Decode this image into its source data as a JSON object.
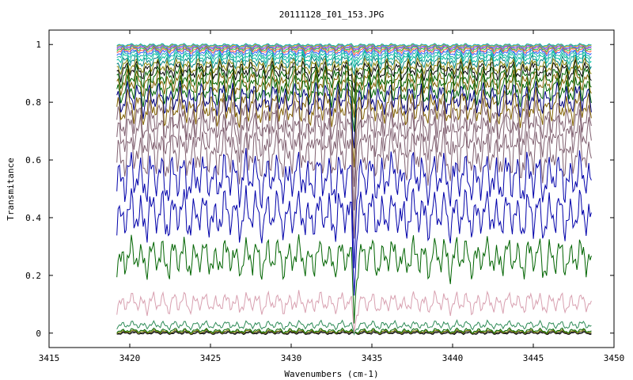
{
  "chart_data": {
    "type": "line",
    "title": "20111128_I01_153.JPG",
    "xlabel": "Wavenumbers (cm-1)",
    "ylabel": "Transmitance",
    "xlim": [
      3415,
      3450
    ],
    "ylim": [
      -0.05,
      1.05
    ],
    "x_range": [
      3419.2,
      3448.6
    ],
    "x_ticks": [
      3415,
      3420,
      3425,
      3430,
      3435,
      3440,
      3445,
      3450
    ],
    "x_tick_labels": [
      "3415",
      "3420",
      "3425",
      "3430",
      "3435",
      "3440",
      "3445",
      "3450"
    ],
    "y_ticks": [
      0,
      0.2,
      0.4,
      0.6,
      0.8,
      1
    ],
    "y_tick_labels": [
      "0",
      "0.2",
      "0.4",
      "0.6",
      "0.8",
      "1"
    ],
    "grid": false,
    "absorption_line_x": 3433.9,
    "series": [
      {
        "baseline": 0.0,
        "color": "#000000"
      },
      {
        "baseline": 0.003,
        "color": "#333333"
      },
      {
        "baseline": 0.006,
        "color": "#808000"
      },
      {
        "baseline": 0.01,
        "color": "#006400"
      },
      {
        "baseline": 0.03,
        "color": "#2e8b57"
      },
      {
        "baseline": 0.11,
        "color": "#d8a0b0"
      },
      {
        "baseline": 0.27,
        "color": "#006400"
      },
      {
        "baseline": 0.42,
        "color": "#0000aa"
      },
      {
        "baseline": 0.55,
        "color": "#0000aa"
      },
      {
        "baseline": 0.63,
        "color": "#806070"
      },
      {
        "baseline": 0.7,
        "color": "#806070"
      },
      {
        "baseline": 0.75,
        "color": "#806070"
      },
      {
        "baseline": 0.79,
        "color": "#806000"
      },
      {
        "baseline": 0.82,
        "color": "#000080"
      },
      {
        "baseline": 0.85,
        "color": "#006400"
      },
      {
        "baseline": 0.875,
        "color": "#806000"
      },
      {
        "baseline": 0.895,
        "color": "#006400"
      },
      {
        "baseline": 0.915,
        "color": "#000000"
      },
      {
        "baseline": 0.93,
        "color": "#808000"
      },
      {
        "baseline": 0.945,
        "color": "#008080"
      },
      {
        "baseline": 0.958,
        "color": "#00c0a0"
      },
      {
        "baseline": 0.968,
        "color": "#20b2aa"
      },
      {
        "baseline": 0.976,
        "color": "#3060ff"
      },
      {
        "baseline": 0.982,
        "color": "#ff6040"
      },
      {
        "baseline": 0.987,
        "color": "#20c040"
      },
      {
        "baseline": 0.991,
        "color": "#c040c0"
      },
      {
        "baseline": 0.994,
        "color": "#4080ff"
      },
      {
        "baseline": 0.997,
        "color": "#ffa000"
      },
      {
        "baseline": 0.999,
        "color": "#00b0b0"
      }
    ]
  }
}
